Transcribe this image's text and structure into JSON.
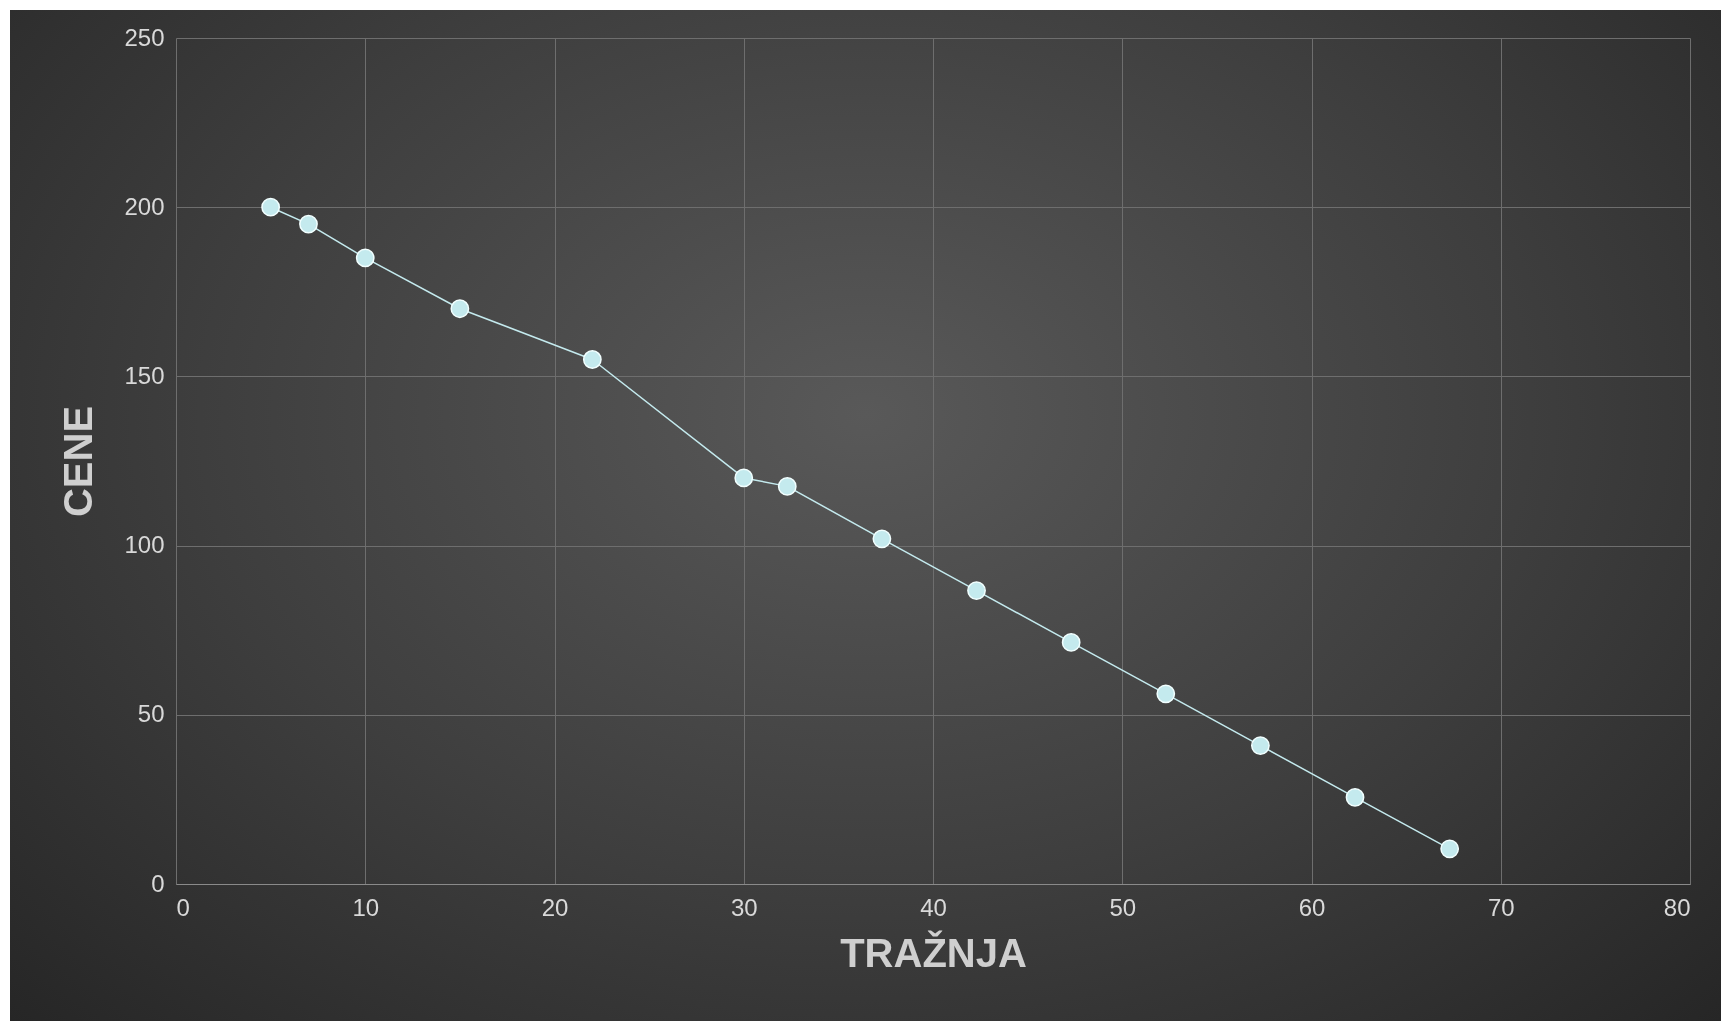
{
  "chart_data": {
    "type": "line",
    "xlabel": "TRAŽNJA",
    "ylabel": "CENE",
    "x": [
      5,
      7,
      10,
      15,
      22,
      30,
      32.3,
      37.3,
      42.3,
      47.3,
      52.3,
      57.3,
      62.3,
      67.3
    ],
    "series": [
      {
        "color": "#c4eaee",
        "values": [
          200,
          195,
          185,
          170,
          155,
          120,
          117.5,
          102,
          86.7,
          71.4,
          56.2,
          40.9,
          25.6,
          10.4
        ]
      }
    ],
    "xlim": [
      0,
      80
    ],
    "xticks": [
      0,
      10,
      20,
      30,
      40,
      50,
      60,
      70,
      80
    ],
    "ylim": [
      0,
      250
    ],
    "yticks": [
      0,
      50,
      100,
      150,
      200,
      250
    ],
    "grid": true,
    "marker": "circle",
    "line_style": "solid"
  }
}
